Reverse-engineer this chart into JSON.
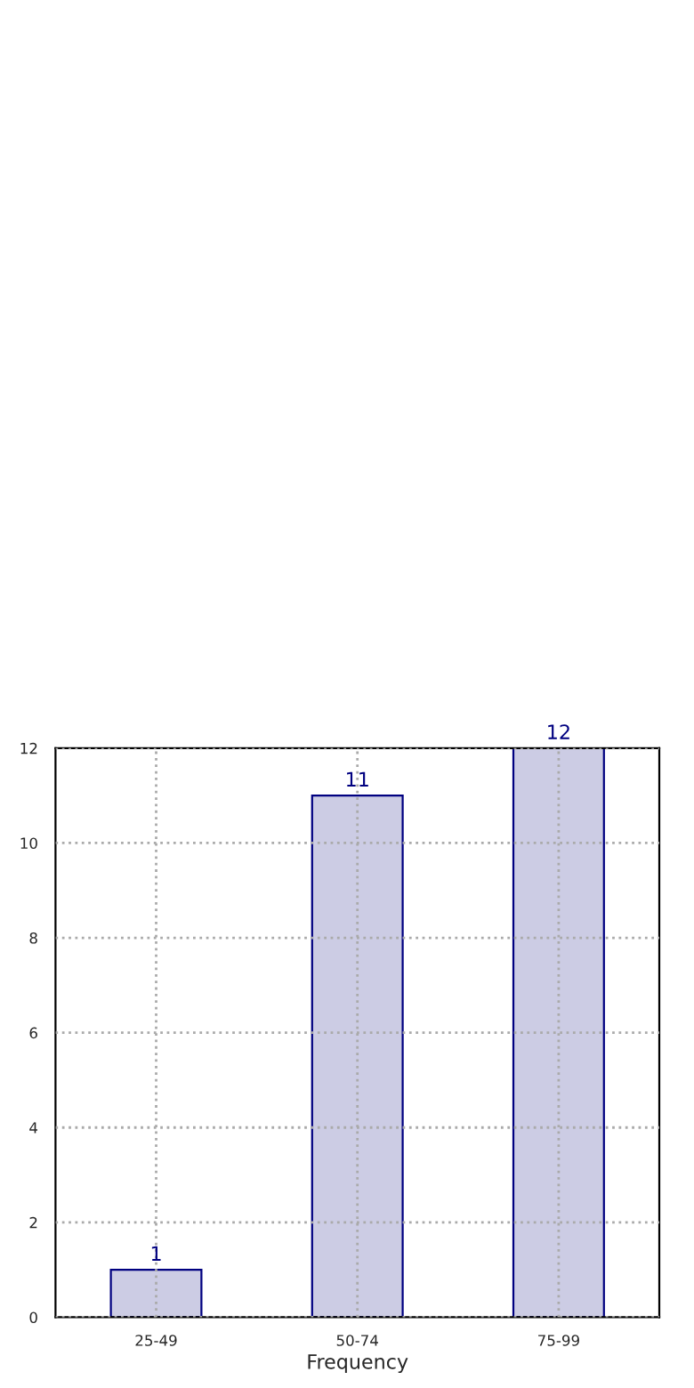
{
  "chart_data": {
    "type": "bar",
    "xlabel": "Frequency",
    "categories": [
      "25-49",
      "50-74",
      "75-99"
    ],
    "values": [
      1,
      11,
      12
    ],
    "color": "#cccce4",
    "ylim": [
      0,
      12
    ],
    "yticks": [
      0,
      2,
      4,
      6,
      8,
      10,
      12
    ],
    "grid": true,
    "data_labels": true
  }
}
